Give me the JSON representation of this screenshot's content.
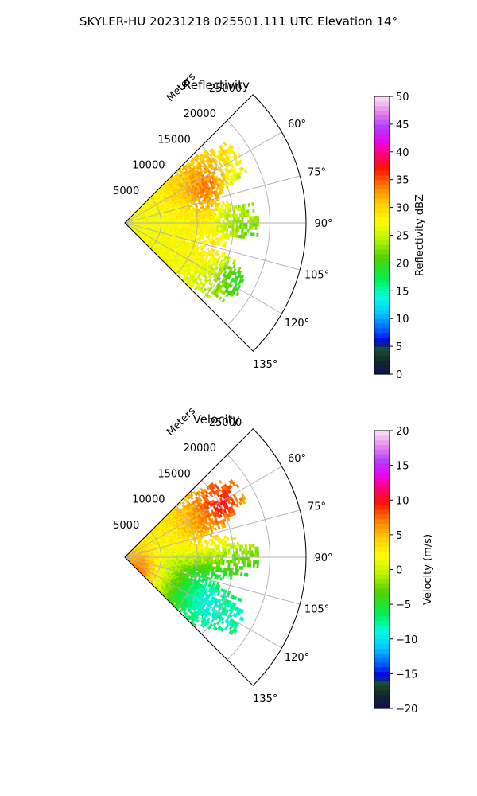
{
  "figure": {
    "suptitle": "SKYLER-HU  20231218  025501.111 UTC Elevation 14°"
  },
  "chart_data": [
    {
      "type": "heatmap",
      "title": "Reflectivity",
      "radial_label": "Meters",
      "radial_ticks": [
        "5000",
        "10000",
        "15000",
        "20000",
        "25000"
      ],
      "radial_values": [
        5000,
        10000,
        15000,
        20000,
        25000
      ],
      "r_max": 25000,
      "azimuth_range_deg": [
        45,
        135
      ],
      "azimuth_ticks": [
        "60°",
        "75°",
        "90°",
        "105°",
        "120°",
        "135°"
      ],
      "azimuth_values": [
        60,
        75,
        90,
        105,
        120,
        135
      ],
      "colorbar": {
        "label": "Reflectivity dBZ",
        "range": [
          0,
          50
        ],
        "ticks": [
          "0",
          "5",
          "10",
          "15",
          "20",
          "25",
          "30",
          "35",
          "40",
          "45",
          "50"
        ],
        "tick_values": [
          0,
          5,
          10,
          15,
          20,
          25,
          30,
          35,
          40,
          45,
          50
        ]
      },
      "blobs": [
        {
          "az": 85,
          "range_m": 3500,
          "value": 27
        },
        {
          "az": 95,
          "range_m": 4500,
          "value": 27
        },
        {
          "az": 80,
          "range_m": 9000,
          "value": 26
        },
        {
          "az": 100,
          "range_m": 9500,
          "value": 26
        },
        {
          "az": 72,
          "range_m": 11000,
          "value": 38
        },
        {
          "az": 68,
          "range_m": 13000,
          "value": 41
        },
        {
          "az": 77,
          "range_m": 12000,
          "value": 34
        },
        {
          "az": 105,
          "range_m": 12500,
          "value": 35
        },
        {
          "az": 108,
          "range_m": 14000,
          "value": 33
        },
        {
          "az": 88,
          "range_m": 14000,
          "value": 18
        },
        {
          "az": 75,
          "range_m": 16500,
          "value": 16
        },
        {
          "az": 98,
          "range_m": 17000,
          "value": 15
        },
        {
          "az": 116,
          "range_m": 17500,
          "value": 15
        },
        {
          "az": 113,
          "range_m": 15500,
          "value": 18
        }
      ]
    },
    {
      "type": "heatmap",
      "title": "Velocity",
      "radial_label": "Meters",
      "radial_ticks": [
        "5000",
        "10000",
        "15000",
        "20000",
        "25000"
      ],
      "radial_values": [
        5000,
        10000,
        15000,
        20000,
        25000
      ],
      "r_max": 25000,
      "azimuth_range_deg": [
        45,
        135
      ],
      "azimuth_ticks": [
        "60°",
        "75°",
        "90°",
        "105°",
        "120°",
        "135°"
      ],
      "azimuth_values": [
        60,
        75,
        90,
        105,
        120,
        135
      ],
      "colorbar": {
        "label": "Velocity (m/s)",
        "range": [
          -20,
          20
        ],
        "ticks": [
          "−20",
          "−15",
          "−10",
          "−5",
          "0",
          "5",
          "10",
          "15",
          "20"
        ],
        "tick_values": [
          -20,
          -15,
          -10,
          -5,
          0,
          5,
          10,
          15,
          20
        ]
      },
      "blobs": [
        {
          "az": 68,
          "range_m": 12000,
          "value": 10
        },
        {
          "az": 62,
          "range_m": 15000,
          "value": 14
        },
        {
          "az": 75,
          "range_m": 10000,
          "value": 8
        },
        {
          "az": 82,
          "range_m": 8000,
          "value": 5
        },
        {
          "az": 90,
          "range_m": 9000,
          "value": 1
        },
        {
          "az": 96,
          "range_m": 8000,
          "value": -3
        },
        {
          "az": 104,
          "range_m": 10000,
          "value": -8
        },
        {
          "az": 112,
          "range_m": 11000,
          "value": -12
        },
        {
          "az": 118,
          "range_m": 13000,
          "value": -14
        },
        {
          "az": 114,
          "range_m": 17500,
          "value": -11
        },
        {
          "az": 108,
          "range_m": 16000,
          "value": -7
        },
        {
          "az": 98,
          "range_m": 15000,
          "value": -4
        },
        {
          "az": 128,
          "range_m": 3000,
          "value": 12
        }
      ]
    }
  ]
}
